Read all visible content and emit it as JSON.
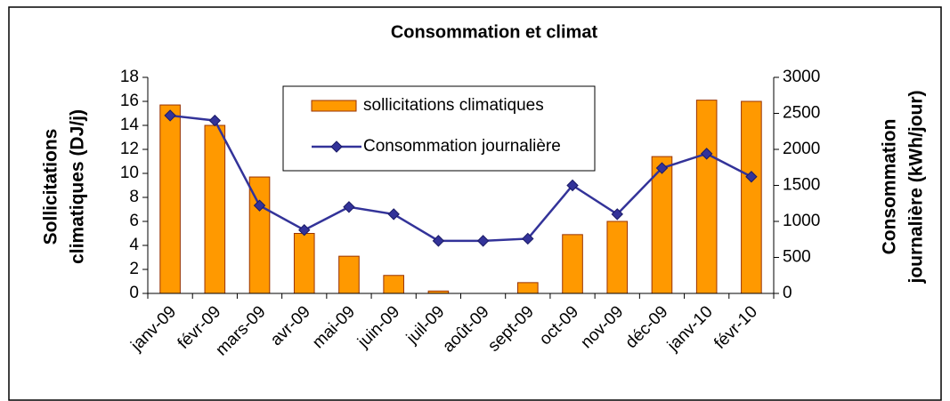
{
  "chart_data": {
    "type": "bar",
    "title": "Consommation et climat",
    "categories": [
      "janv-09",
      "févr-09",
      "mars-09",
      "avr-09",
      "mai-09",
      "juin-09",
      "juil-09",
      "août-09",
      "sept-09",
      "oct-09",
      "nov-09",
      "déc-09",
      "janv-10",
      "févr-10"
    ],
    "series": [
      {
        "name": "sollicitations climatiques",
        "type": "bar",
        "color": "#ff9900",
        "values": [
          15.7,
          14,
          9.7,
          5,
          3.1,
          1.5,
          0.2,
          0,
          0.9,
          4.9,
          6,
          11.4,
          16.1,
          16
        ]
      },
      {
        "name": "Consommation journalière",
        "type": "line",
        "axis": "y2",
        "color": "#333399",
        "values": [
          2470,
          2400,
          1220,
          880,
          1200,
          1100,
          730,
          730,
          760,
          1500,
          1100,
          1740,
          1940,
          1620
        ]
      }
    ],
    "y_label": [
      "Sollicitations",
      "climatiques (DJ/j)"
    ],
    "y2_label": [
      "Consommation",
      "journalière (kWh/jour)"
    ],
    "ylim": [
      0,
      18
    ],
    "yticks": [
      0,
      2,
      4,
      6,
      8,
      10,
      12,
      14,
      16,
      18
    ],
    "y2lim": [
      0,
      3000
    ],
    "y2ticks": [
      0,
      500,
      1000,
      1500,
      2000,
      2500,
      3000
    ],
    "grid": false,
    "legend": "top"
  }
}
